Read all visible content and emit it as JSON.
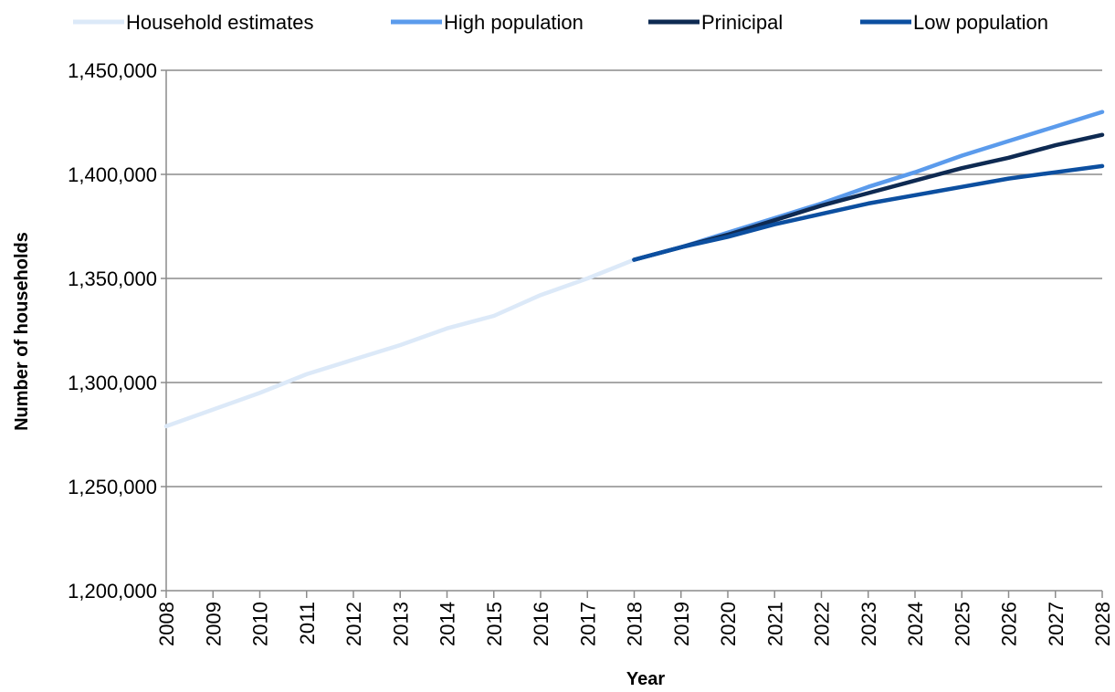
{
  "chart_data": {
    "type": "line",
    "title": "",
    "xlabel": "Year",
    "ylabel": "Number of households",
    "categories": [
      "2008",
      "2009",
      "2010",
      "2011",
      "2012",
      "2013",
      "2014",
      "2015",
      "2016",
      "2017",
      "2018",
      "2019",
      "2020",
      "2021",
      "2022",
      "2023",
      "2024",
      "2025",
      "2026",
      "2027",
      "2028"
    ],
    "ylim": [
      1200000,
      1450000
    ],
    "yticks": [
      1200000,
      1250000,
      1300000,
      1350000,
      1400000,
      1450000
    ],
    "ytick_labels": [
      "1,200,000",
      "1,250,000",
      "1,300,000",
      "1,350,000",
      "1,400,000",
      "1,450,000"
    ],
    "grid": "horizontal",
    "legend_position": "top",
    "series": [
      {
        "name": "Household estimates",
        "color": "#dce9f8",
        "values": [
          1279000,
          1287000,
          1295000,
          1304000,
          1311000,
          1318000,
          1326000,
          1332000,
          1342000,
          1350000,
          1359000,
          null,
          null,
          null,
          null,
          null,
          null,
          null,
          null,
          null,
          null
        ]
      },
      {
        "name": "High population",
        "color": "#5b9bec",
        "values": [
          null,
          null,
          null,
          null,
          null,
          null,
          null,
          null,
          null,
          null,
          1359000,
          1365000,
          1372000,
          1379000,
          1386000,
          1394000,
          1401000,
          1409000,
          1416000,
          1423000,
          1430000
        ]
      },
      {
        "name": "Prinicipal",
        "color": "#0e2a52",
        "values": [
          null,
          null,
          null,
          null,
          null,
          null,
          null,
          null,
          null,
          null,
          1359000,
          1365000,
          1371000,
          1378000,
          1385000,
          1391000,
          1397000,
          1403000,
          1408000,
          1414000,
          1419000
        ]
      },
      {
        "name": "Low population",
        "color": "#0c4fa0",
        "values": [
          null,
          null,
          null,
          null,
          null,
          null,
          null,
          null,
          null,
          null,
          1359000,
          1365000,
          1370000,
          1376000,
          1381000,
          1386000,
          1390000,
          1394000,
          1398000,
          1401000,
          1404000
        ]
      }
    ]
  }
}
